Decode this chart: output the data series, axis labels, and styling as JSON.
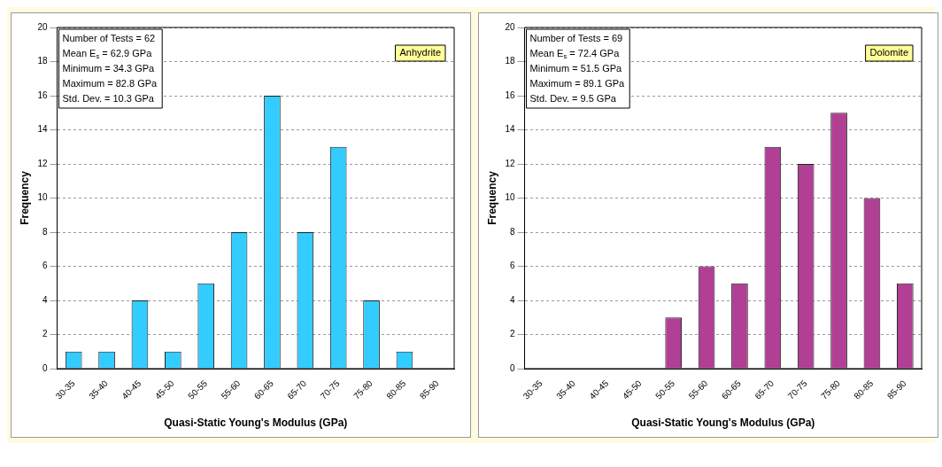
{
  "chart_data": [
    {
      "type": "bar",
      "xlabel": "Quasi-Static Young's Modulus (GPa)",
      "ylabel": "Frequency",
      "categories": [
        "30-35",
        "35-40",
        "40-45",
        "45-50",
        "50-55",
        "55-60",
        "60-65",
        "65-70",
        "70-75",
        "75-80",
        "80-85",
        "85-90"
      ],
      "values": [
        1,
        1,
        4,
        1,
        5,
        8,
        16,
        8,
        13,
        4,
        1,
        0
      ],
      "color": "#33ccff",
      "ylim": [
        0,
        20
      ],
      "yticks": [
        0,
        2,
        4,
        6,
        8,
        10,
        12,
        14,
        16,
        18,
        20
      ],
      "grid": "y",
      "legend": false,
      "annotations": [
        "Number of Tests = 62",
        "Mean E$_{s}$ = 62.9 GPa",
        "Minimum = 34.3 GPa",
        "Maximum = 82.8 GPa",
        "Std. Dev. = 10.3 GPa",
        "Anhydrite"
      ]
    },
    {
      "type": "bar",
      "xlabel": "Quasi-Static Young's Modulus (GPa)",
      "ylabel": "Frequency",
      "categories": [
        "30-35",
        "35-40",
        "40-45",
        "45-50",
        "50-55",
        "55-60",
        "60-65",
        "65-70",
        "70-75",
        "75-80",
        "80-85",
        "85-90"
      ],
      "values": [
        0,
        0,
        0,
        0,
        3,
        6,
        5,
        13,
        12,
        15,
        10,
        5
      ],
      "color": "#b13f94",
      "ylim": [
        0,
        20
      ],
      "yticks": [
        0,
        2,
        4,
        6,
        8,
        10,
        12,
        14,
        16,
        18,
        20
      ],
      "grid": "y",
      "legend": false,
      "annotations": [
        "Number of Tests = 69",
        "Mean E$_{s}$ = 72.4 GPa",
        "Minimum = 51.5 GPa",
        "Maximum = 89.1 GPa",
        "Std. Dev. = 9.5 GPa",
        "Dolomite"
      ]
    }
  ]
}
